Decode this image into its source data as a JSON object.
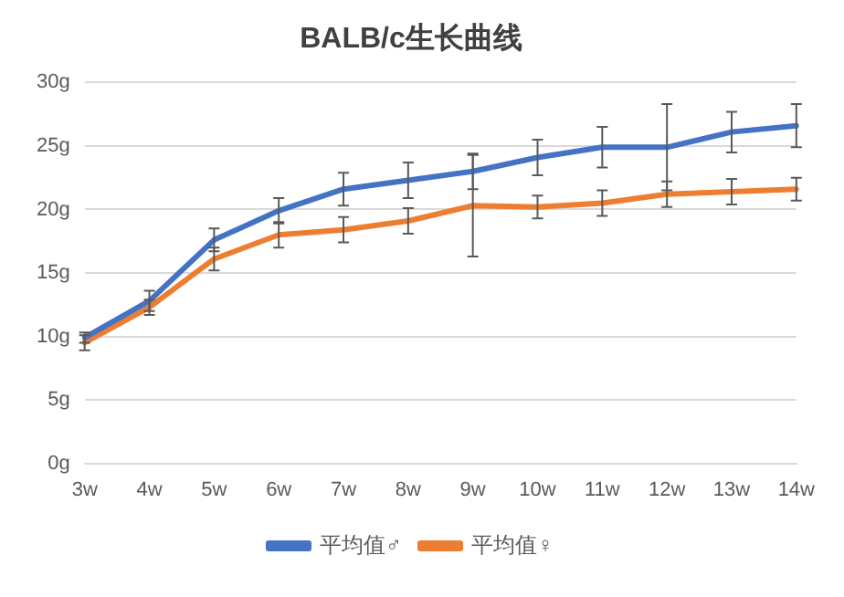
{
  "chart_data": {
    "type": "line",
    "title": "BALB/c生长曲线",
    "categories": [
      "3w",
      "4w",
      "5w",
      "6w",
      "7w",
      "8w",
      "9w",
      "10w",
      "11w",
      "12w",
      "13w",
      "14w"
    ],
    "series": [
      {
        "name": "平均值♂",
        "color": "#4472c4",
        "values": [
          9.9,
          12.8,
          17.6,
          19.9,
          21.6,
          22.3,
          23.0,
          24.1,
          24.9,
          24.9,
          26.1,
          26.6
        ],
        "errors": [
          0.4,
          0.8,
          0.9,
          1.0,
          1.3,
          1.4,
          1.4,
          1.4,
          1.6,
          3.4,
          1.6,
          1.7
        ]
      },
      {
        "name": "平均值♀",
        "color": "#ed7d31",
        "values": [
          9.5,
          12.3,
          16.1,
          18.0,
          18.4,
          19.1,
          20.3,
          20.2,
          20.5,
          21.2,
          21.4,
          21.6
        ],
        "errors": [
          0.6,
          0.6,
          0.9,
          1.0,
          1.0,
          1.0,
          4.0,
          0.9,
          1.0,
          1.0,
          1.0,
          0.9
        ]
      }
    ],
    "ylim": [
      0,
      30
    ],
    "yticks": [
      {
        "value": 0,
        "label": "0g"
      },
      {
        "value": 5,
        "label": "5g"
      },
      {
        "value": 10,
        "label": "10g"
      },
      {
        "value": 15,
        "label": "15g"
      },
      {
        "value": 20,
        "label": "20g"
      },
      {
        "value": 25,
        "label": "25g"
      },
      {
        "value": 30,
        "label": "30g"
      }
    ],
    "grid": "y",
    "legend": "bottom",
    "marker": "none",
    "line_style": "solid"
  }
}
